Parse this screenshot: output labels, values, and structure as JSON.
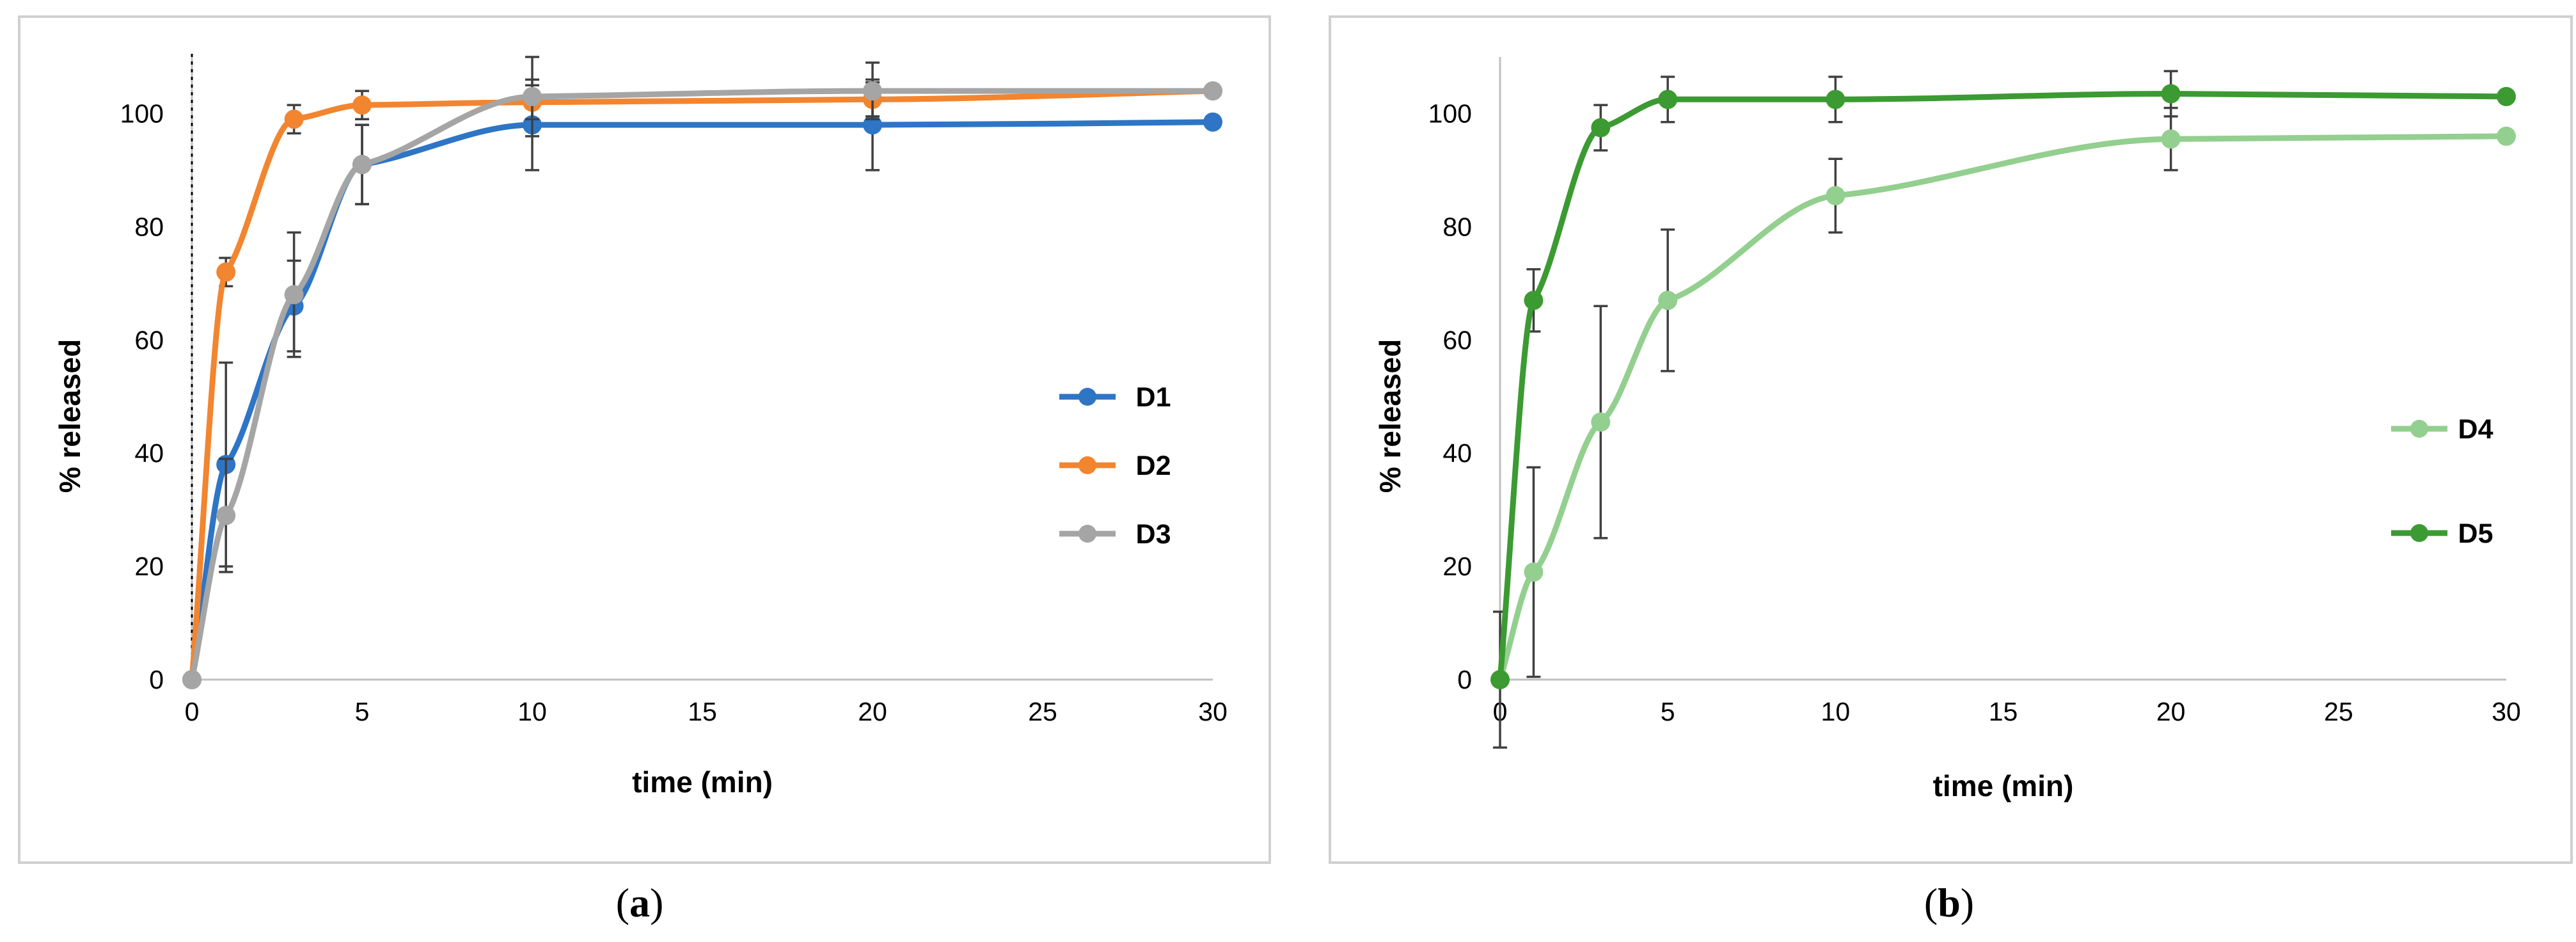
{
  "chart_data": [
    {
      "panel": "a",
      "caption": "a",
      "type": "line",
      "xlabel": "time (min)",
      "ylabel": "% released",
      "xlim": [
        0,
        30
      ],
      "ylim": [
        0,
        110
      ],
      "xticks": [
        0,
        5,
        10,
        15,
        20,
        25,
        30
      ],
      "yticks": [
        0,
        20,
        40,
        60,
        80,
        100
      ],
      "legend_position": "right",
      "vertical_marker_at_x": 0,
      "series": [
        {
          "name": "D1",
          "color": "#2e75c6",
          "x": [
            0,
            1,
            3,
            5,
            10,
            20,
            30
          ],
          "values": [
            0,
            38,
            66,
            91,
            98,
            98,
            98.5
          ],
          "errors": [
            0,
            18,
            8,
            7,
            8,
            8,
            0
          ]
        },
        {
          "name": "D2",
          "color": "#f28530",
          "x": [
            0,
            1,
            3,
            5,
            10,
            20,
            30
          ],
          "values": [
            0,
            72,
            99,
            101.5,
            102,
            102.5,
            104
          ],
          "errors": [
            0,
            2.5,
            2.5,
            2.5,
            3,
            3,
            0
          ]
        },
        {
          "name": "D3",
          "color": "#a5a5a5",
          "x": [
            0,
            1,
            3,
            5,
            10,
            20,
            30
          ],
          "values": [
            0,
            29,
            68,
            91,
            103,
            104,
            104
          ],
          "errors": [
            0,
            10,
            11,
            7,
            7,
            5,
            0
          ]
        }
      ]
    },
    {
      "panel": "b",
      "caption": "b",
      "type": "line",
      "xlabel": "time (min)",
      "ylabel": "% released",
      "xlim": [
        0,
        30
      ],
      "ylim": [
        0,
        110
      ],
      "xticks": [
        0,
        5,
        10,
        15,
        20,
        25,
        30
      ],
      "yticks": [
        0,
        20,
        40,
        60,
        80,
        100
      ],
      "legend_position": "right",
      "series": [
        {
          "name": "D4",
          "color": "#93cf8f",
          "x": [
            0,
            1,
            3,
            5,
            10,
            20,
            30
          ],
          "values": [
            0,
            19,
            45.5,
            67,
            85.5,
            95.5,
            96
          ],
          "errors": [
            0,
            18.5,
            20.5,
            12.5,
            6.5,
            5.5,
            0
          ]
        },
        {
          "name": "D5",
          "color": "#3c9a32",
          "x": [
            0,
            1,
            3,
            5,
            10,
            20,
            30
          ],
          "values": [
            0,
            67,
            97.5,
            102.5,
            102.5,
            103.5,
            103
          ],
          "errors": [
            12,
            5.5,
            4,
            4,
            4,
            4,
            0
          ]
        }
      ]
    }
  ]
}
